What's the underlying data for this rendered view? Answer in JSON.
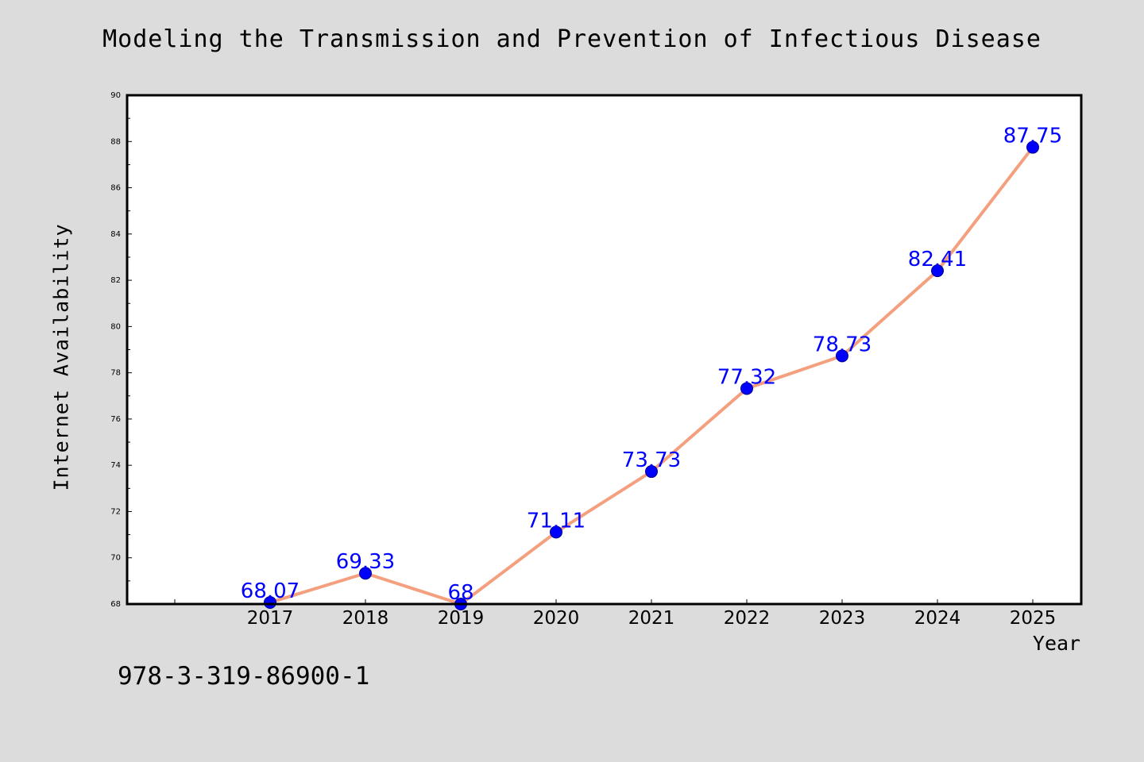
{
  "chart_data": {
    "type": "line",
    "title": "Modeling the Transmission and Prevention of Infectious Disease",
    "xlabel": "Year",
    "ylabel": "Internet Availability",
    "categories": [
      "2017",
      "2018",
      "2019",
      "2020",
      "2021",
      "2022",
      "2023",
      "2024",
      "2025"
    ],
    "series": [
      {
        "values": [
          68.07,
          69.33,
          68,
          71.11,
          73.73,
          77.32,
          78.73,
          82.41,
          87.75
        ],
        "data_labels": [
          "68.07",
          "69.33",
          "68",
          "71.11",
          "73.73",
          "77.32",
          "78.73",
          "82.41",
          "87.75"
        ],
        "line_color": "#f4a07f",
        "marker_color": "#0000ff"
      }
    ],
    "ylim": [
      68,
      90
    ],
    "y_ticks": [
      "68",
      "70",
      "72",
      "74",
      "76",
      "78",
      "80",
      "82",
      "84",
      "86",
      "88",
      "90"
    ],
    "grid": false,
    "legend": "none"
  },
  "footer": {
    "isbn": "978-3-319-86900-1"
  },
  "colors": {
    "background": "#dcdcdc",
    "plot_area": "#ffffff",
    "label_color": "#0000ff"
  }
}
